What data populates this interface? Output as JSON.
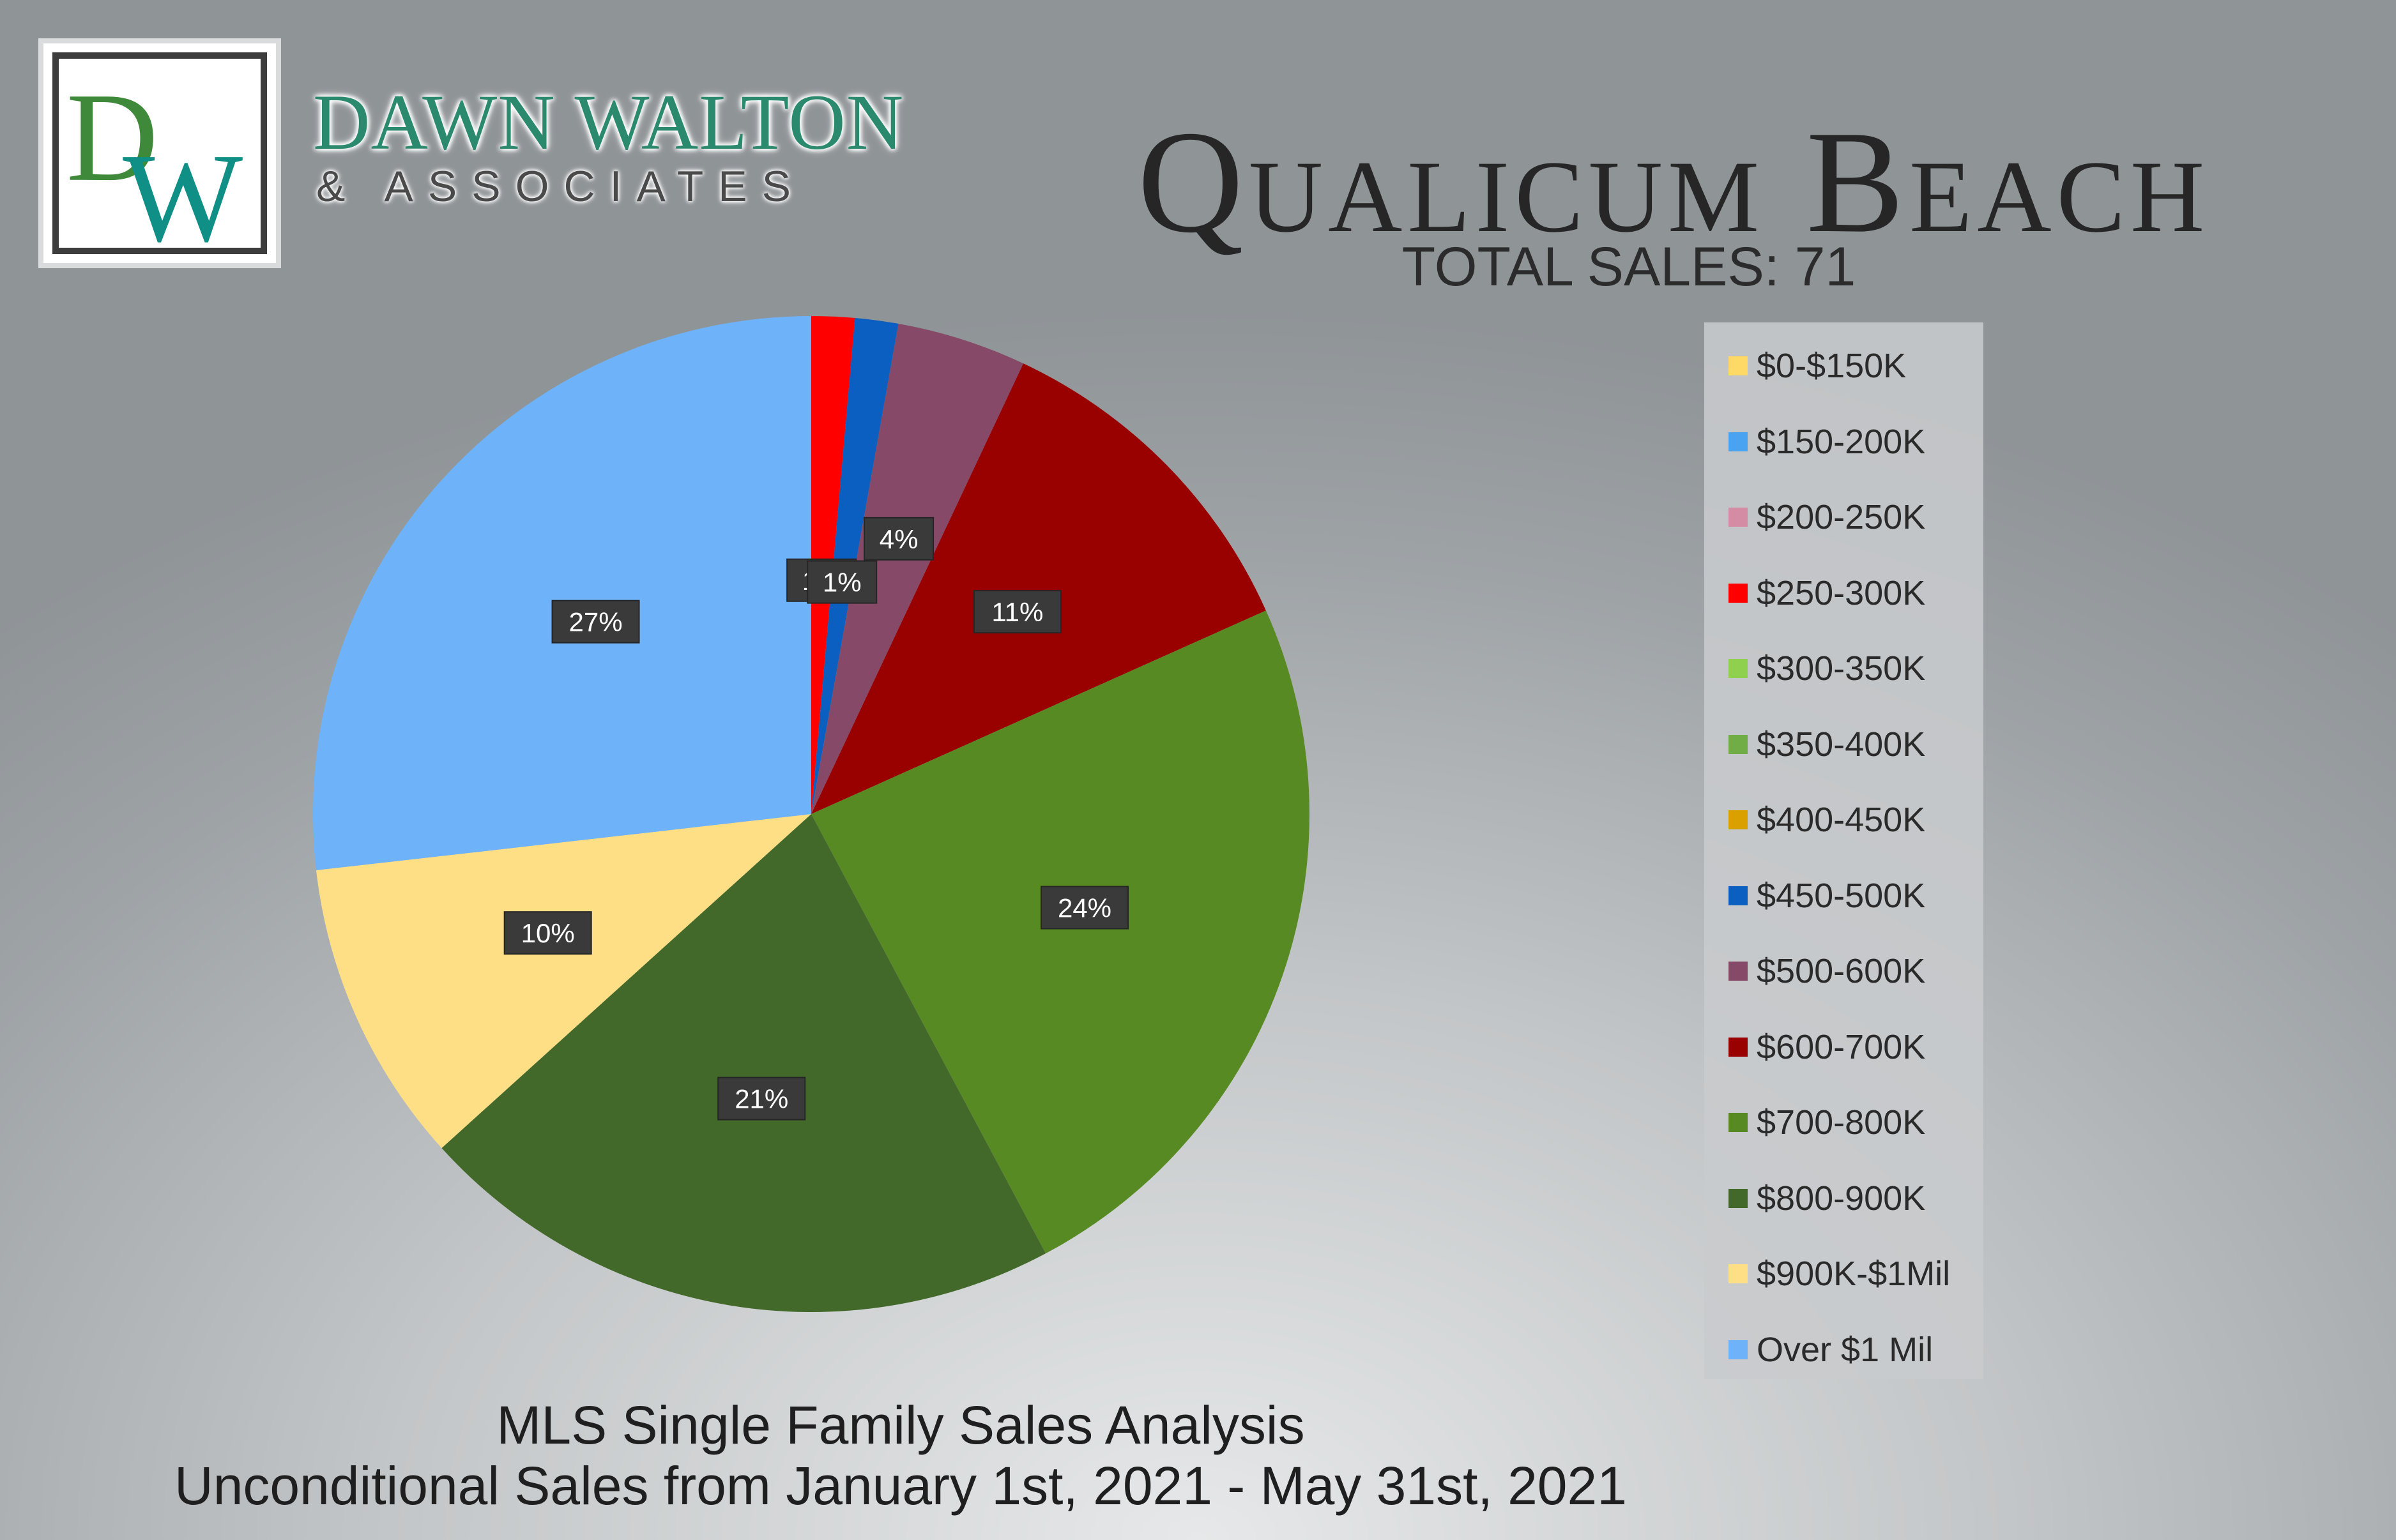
{
  "brand": {
    "monogram": "DW",
    "name": "DAWN WALTON",
    "subtitle": "& ASSOCIATES"
  },
  "header": {
    "title": "Qualicum Beach",
    "total_sales": "TOTAL SALES: 71"
  },
  "footer": {
    "line1": "MLS Single Family Sales Analysis",
    "line2": "Unconditional Sales from January 1st, 2021 - May 31st, 2021"
  },
  "chart_data": {
    "type": "pie",
    "title": "",
    "unit": "%",
    "legend_position": "right",
    "slices": [
      {
        "label": "$0-$150K",
        "value": 0,
        "display": "",
        "color": "#ffd966"
      },
      {
        "label": "$150-200K",
        "value": 0,
        "display": "",
        "color": "#4aa3f0"
      },
      {
        "label": "$200-250K",
        "value": 0,
        "display": "",
        "color": "#d48ca4"
      },
      {
        "label": "$250-300K",
        "value": 1.4,
        "display": "1%",
        "color": "#ff0000"
      },
      {
        "label": "$300-350K",
        "value": 0,
        "display": "",
        "color": "#8fd14f"
      },
      {
        "label": "$350-400K",
        "value": 0,
        "display": "",
        "color": "#70ad47"
      },
      {
        "label": "$400-450K",
        "value": 0,
        "display": "",
        "color": "#d9a000"
      },
      {
        "label": "$450-500K",
        "value": 1.4,
        "display": "1%",
        "color": "#0b5fc0"
      },
      {
        "label": "$500-600K",
        "value": 4.2,
        "display": "4%",
        "color": "#864a68"
      },
      {
        "label": "$600-700K",
        "value": 11.3,
        "display": "11%",
        "color": "#990000"
      },
      {
        "label": "$700-800K",
        "value": 23.9,
        "display": "24%",
        "color": "#588a24"
      },
      {
        "label": "$800-900K",
        "value": 21.1,
        "display": "21%",
        "color": "#43692a"
      },
      {
        "label": "$900K-$1Mil",
        "value": 9.9,
        "display": "10%",
        "color": "#ffdf85"
      },
      {
        "label": "Over $1 Mil",
        "value": 26.8,
        "display": "27%",
        "color": "#6eb3fa"
      }
    ]
  }
}
